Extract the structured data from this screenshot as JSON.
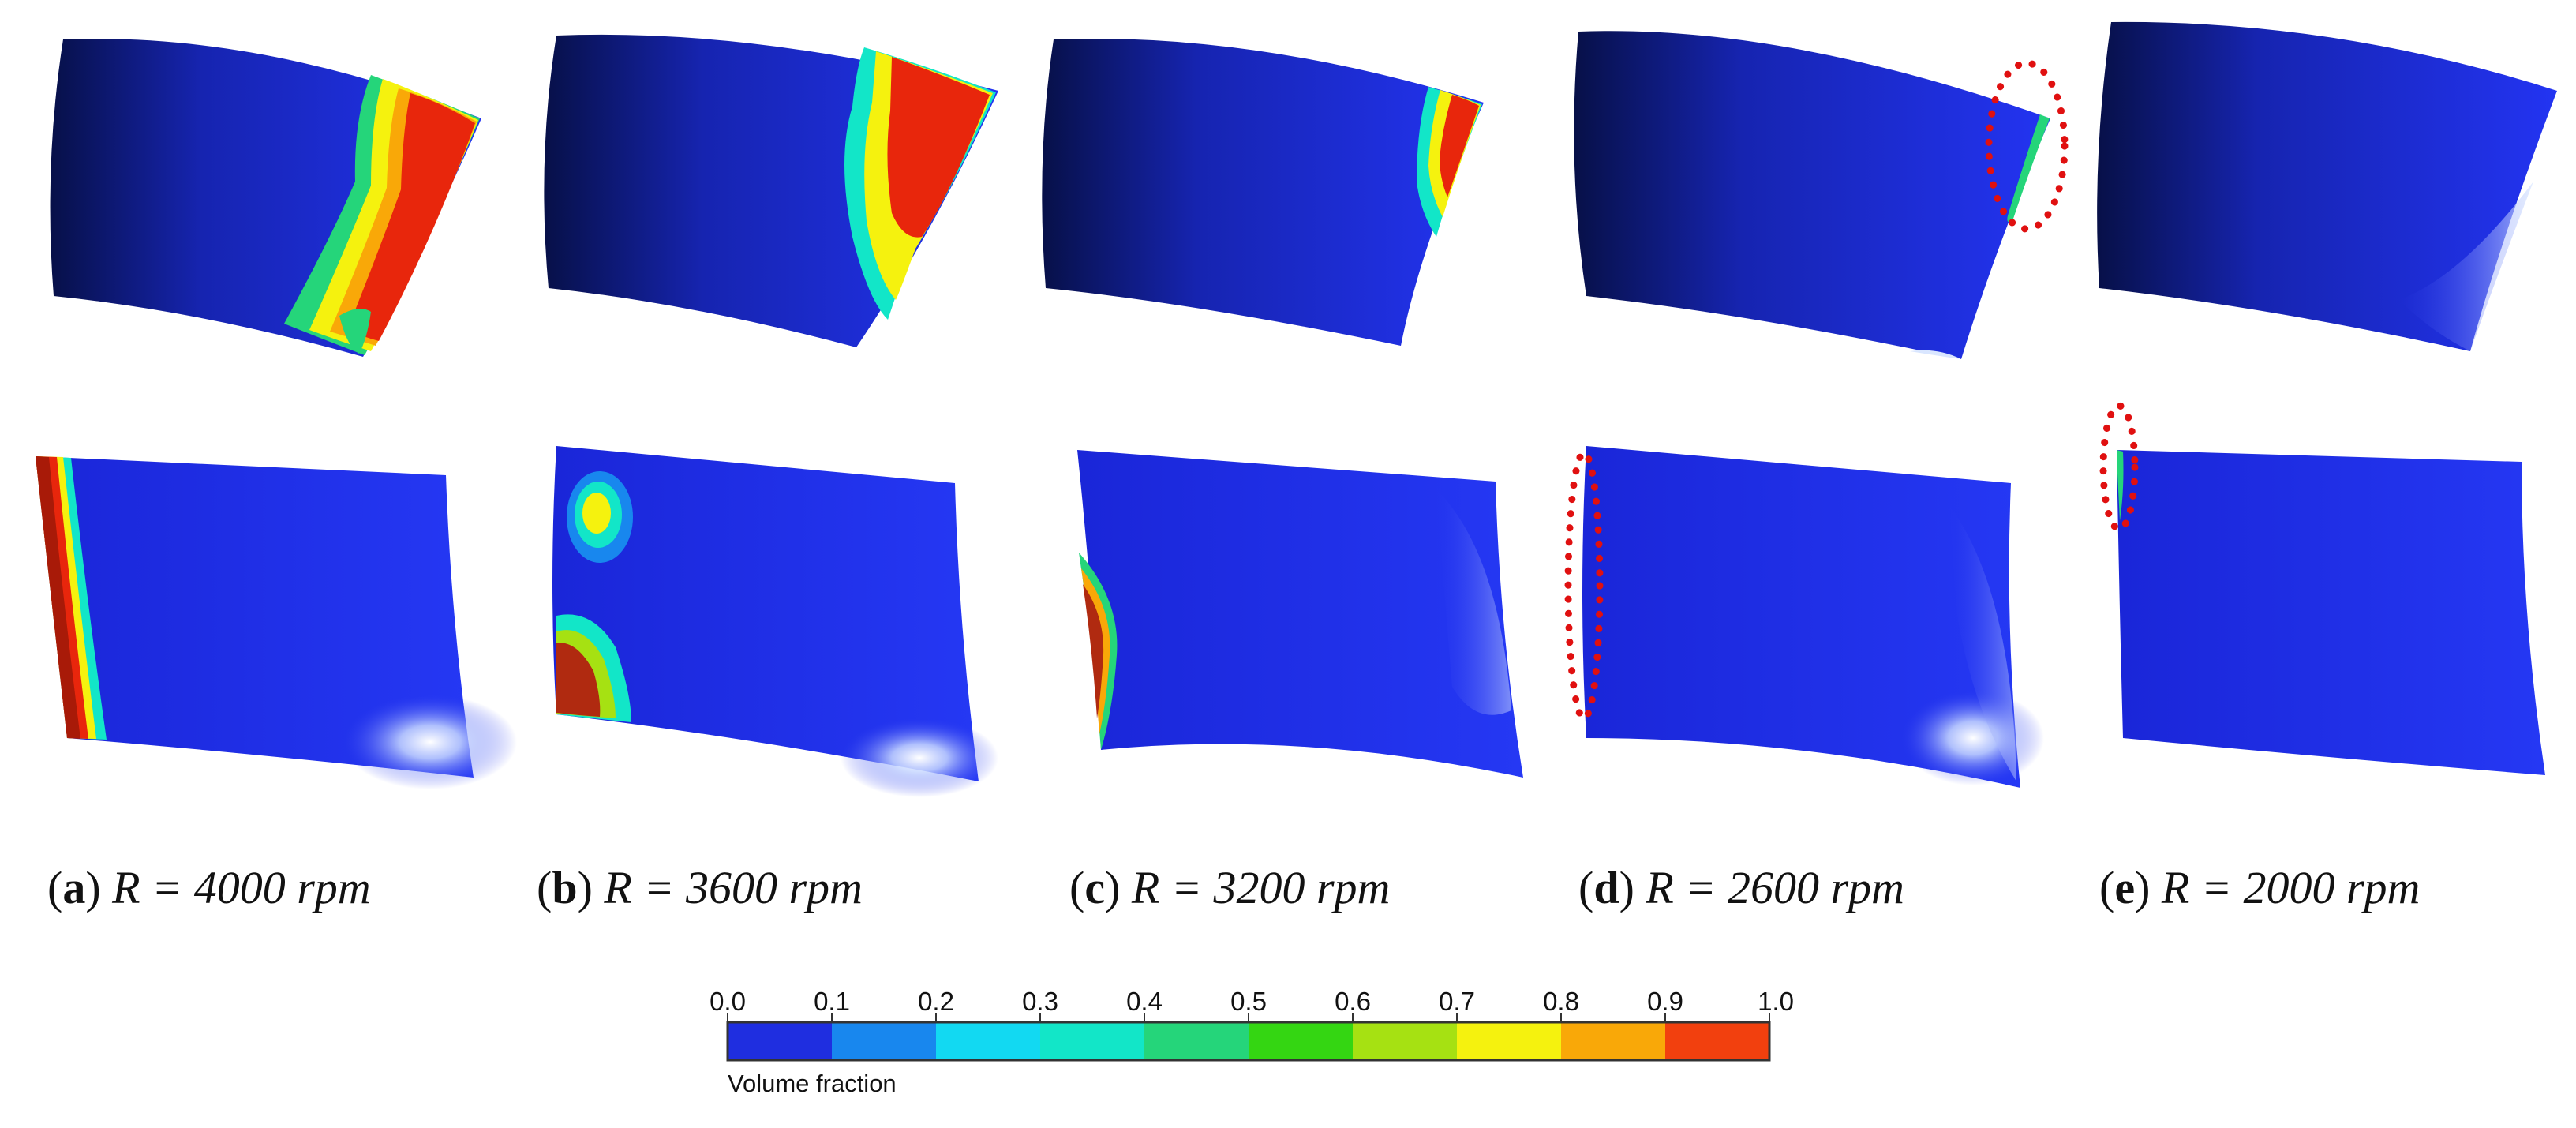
{
  "panels": [
    {
      "letter": "a",
      "equation": "R = 4000 rpm"
    },
    {
      "letter": "b",
      "equation": "R = 3600 rpm"
    },
    {
      "letter": "c",
      "equation": "R = 3200 rpm"
    },
    {
      "letter": "d",
      "equation": "R = 2600 rpm"
    },
    {
      "letter": "e",
      "equation": "R = 2000 rpm"
    }
  ],
  "colorbar": {
    "label": "Volume fraction",
    "ticks": [
      "0.0",
      "0.1",
      "0.2",
      "0.3",
      "0.4",
      "0.5",
      "0.6",
      "0.7",
      "0.8",
      "0.9",
      "1.0"
    ],
    "colors": [
      "#1f2ee0",
      "#1887ee",
      "#12d9f2",
      "#12e6c8",
      "#25d57a",
      "#34d612",
      "#a6e112",
      "#f5f20e",
      "#f9a808",
      "#f2400e"
    ]
  },
  "colors": {
    "blade_blue": "#1f2ee6",
    "blade_dark": "#0a1060",
    "cavity_red": "#e8260c",
    "highlight_marker": "#e01010"
  }
}
